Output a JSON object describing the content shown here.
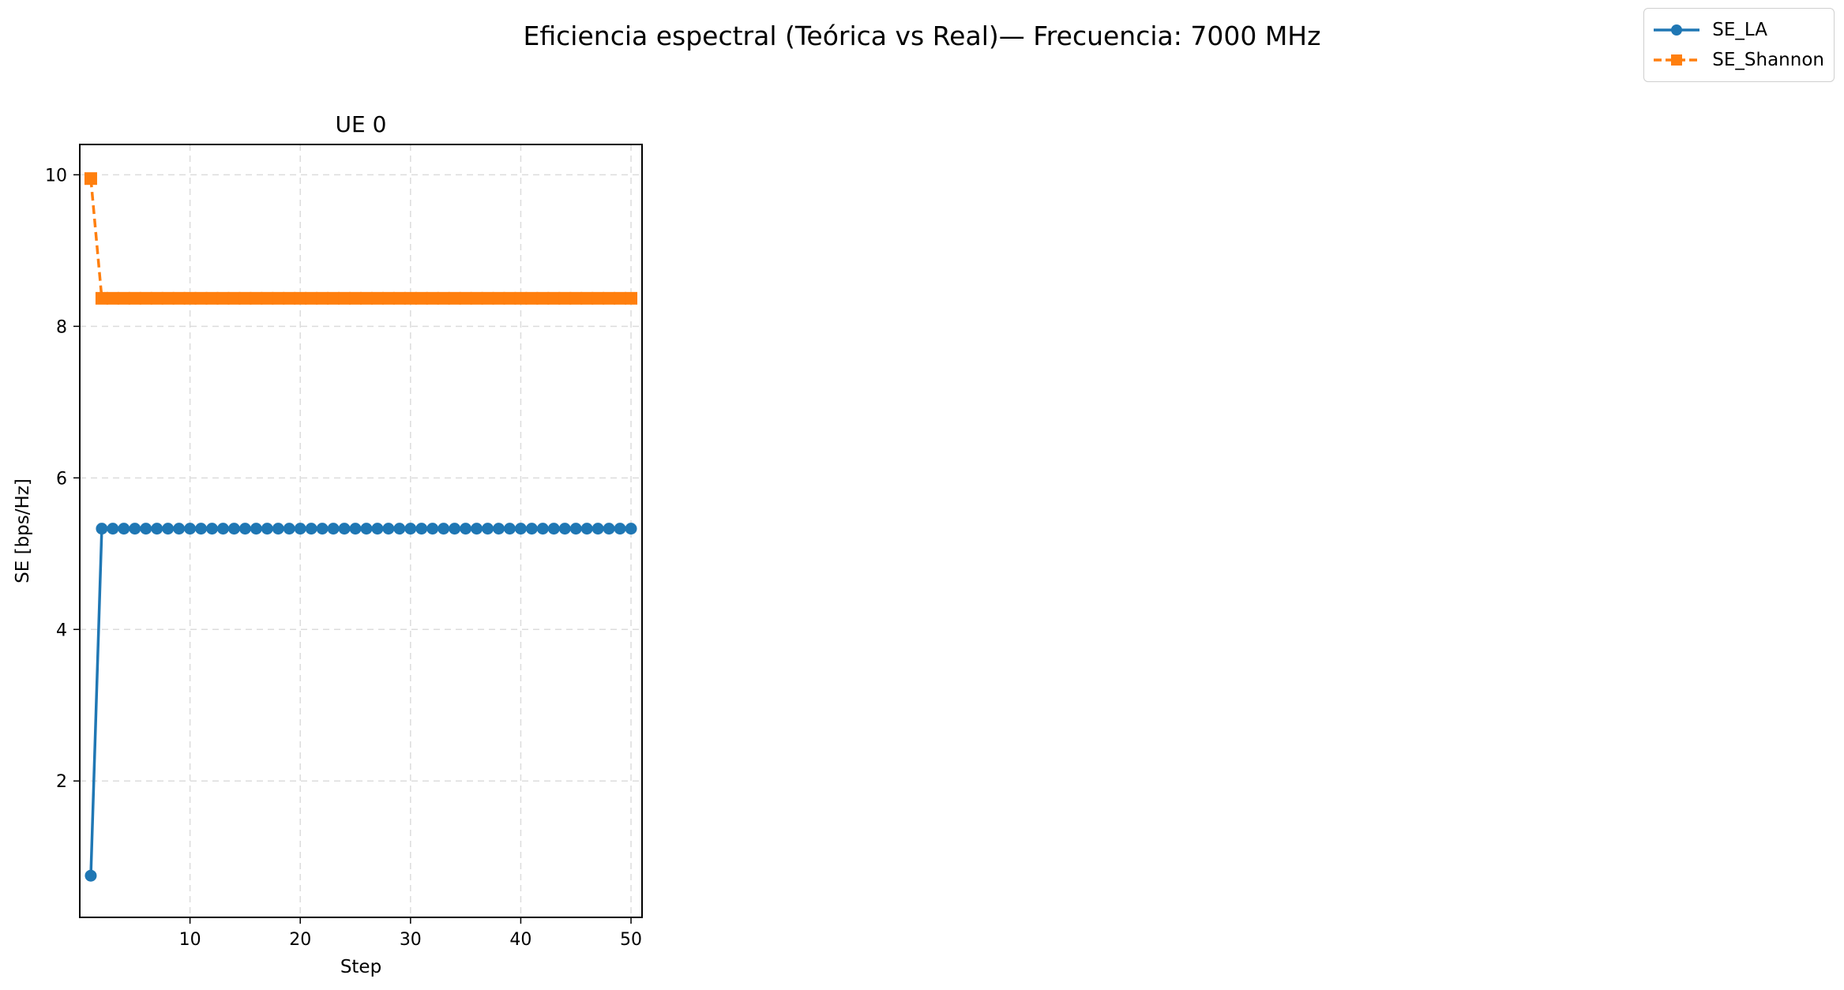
{
  "figure": {
    "title": "Eficiencia espectral (Teórica vs Real)— Frecuencia: 7000 MHz"
  },
  "legend": {
    "items": [
      {
        "label": "SE_LA",
        "color": "#1f77b4",
        "marker": "circle",
        "line": "solid"
      },
      {
        "label": "SE_Shannon",
        "color": "#ff7f0e",
        "marker": "square",
        "line": "dashed"
      }
    ]
  },
  "chart_data": {
    "type": "line",
    "title": "UE 0",
    "xlabel": "Step",
    "ylabel": "SE [bps/Hz]",
    "xlim": [
      0,
      51
    ],
    "ylim": [
      0.2,
      10.4
    ],
    "xticks": [
      10,
      20,
      30,
      40,
      50
    ],
    "yticks": [
      2,
      4,
      6,
      8,
      10
    ],
    "grid": true,
    "legend_position": "upper-right of figure",
    "series": [
      {
        "name": "SE_LA",
        "color": "#1f77b4",
        "marker": "circle",
        "line": "solid",
        "x": [
          1,
          2,
          3,
          4,
          5,
          6,
          7,
          8,
          9,
          10,
          11,
          12,
          13,
          14,
          15,
          16,
          17,
          18,
          19,
          20,
          21,
          22,
          23,
          24,
          25,
          26,
          27,
          28,
          29,
          30,
          31,
          32,
          33,
          34,
          35,
          36,
          37,
          38,
          39,
          40,
          41,
          42,
          43,
          44,
          45,
          46,
          47,
          48,
          49,
          50
        ],
        "values": [
          0.75,
          5.33,
          5.33,
          5.33,
          5.33,
          5.33,
          5.33,
          5.33,
          5.33,
          5.33,
          5.33,
          5.33,
          5.33,
          5.33,
          5.33,
          5.33,
          5.33,
          5.33,
          5.33,
          5.33,
          5.33,
          5.33,
          5.33,
          5.33,
          5.33,
          5.33,
          5.33,
          5.33,
          5.33,
          5.33,
          5.33,
          5.33,
          5.33,
          5.33,
          5.33,
          5.33,
          5.33,
          5.33,
          5.33,
          5.33,
          5.33,
          5.33,
          5.33,
          5.33,
          5.33,
          5.33,
          5.33,
          5.33,
          5.33,
          5.33
        ]
      },
      {
        "name": "SE_Shannon",
        "color": "#ff7f0e",
        "marker": "square",
        "line": "dashed",
        "x": [
          1,
          2,
          3,
          4,
          5,
          6,
          7,
          8,
          9,
          10,
          11,
          12,
          13,
          14,
          15,
          16,
          17,
          18,
          19,
          20,
          21,
          22,
          23,
          24,
          25,
          26,
          27,
          28,
          29,
          30,
          31,
          32,
          33,
          34,
          35,
          36,
          37,
          38,
          39,
          40,
          41,
          42,
          43,
          44,
          45,
          46,
          47,
          48,
          49,
          50
        ],
        "values": [
          9.95,
          8.37,
          8.37,
          8.37,
          8.37,
          8.37,
          8.37,
          8.37,
          8.37,
          8.37,
          8.37,
          8.37,
          8.37,
          8.37,
          8.37,
          8.37,
          8.37,
          8.37,
          8.37,
          8.37,
          8.37,
          8.37,
          8.37,
          8.37,
          8.37,
          8.37,
          8.37,
          8.37,
          8.37,
          8.37,
          8.37,
          8.37,
          8.37,
          8.37,
          8.37,
          8.37,
          8.37,
          8.37,
          8.37,
          8.37,
          8.37,
          8.37,
          8.37,
          8.37,
          8.37,
          8.37,
          8.37,
          8.37,
          8.37,
          8.37
        ]
      }
    ]
  }
}
